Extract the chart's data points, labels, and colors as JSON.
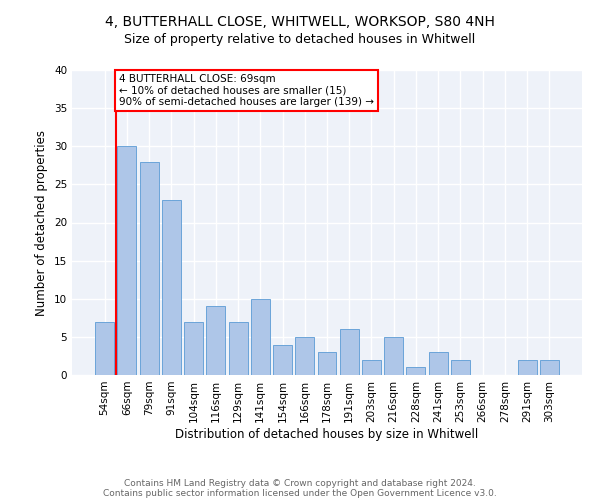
{
  "title1": "4, BUTTERHALL CLOSE, WHITWELL, WORKSOP, S80 4NH",
  "title2": "Size of property relative to detached houses in Whitwell",
  "xlabel": "Distribution of detached houses by size in Whitwell",
  "ylabel": "Number of detached properties",
  "bar_labels": [
    "54sqm",
    "66sqm",
    "79sqm",
    "91sqm",
    "104sqm",
    "116sqm",
    "129sqm",
    "141sqm",
    "154sqm",
    "166sqm",
    "178sqm",
    "191sqm",
    "203sqm",
    "216sqm",
    "228sqm",
    "241sqm",
    "253sqm",
    "266sqm",
    "278sqm",
    "291sqm",
    "303sqm"
  ],
  "bar_values": [
    7,
    30,
    28,
    23,
    7,
    9,
    7,
    10,
    4,
    5,
    3,
    6,
    2,
    5,
    1,
    3,
    2,
    0,
    0,
    2,
    2
  ],
  "bar_color": "#aec6e8",
  "bar_edgecolor": "#5b9bd5",
  "vline_x_index": 1,
  "annotation_text": "4 BUTTERHALL CLOSE: 69sqm\n← 10% of detached houses are smaller (15)\n90% of semi-detached houses are larger (139) →",
  "annotation_box_color": "white",
  "annotation_box_edgecolor": "red",
  "vline_color": "red",
  "ylim": [
    0,
    40
  ],
  "yticks": [
    0,
    5,
    10,
    15,
    20,
    25,
    30,
    35,
    40
  ],
  "footer1": "Contains HM Land Registry data © Crown copyright and database right 2024.",
  "footer2": "Contains public sector information licensed under the Open Government Licence v3.0.",
  "background_color": "#eef2f9",
  "grid_color": "white",
  "title1_fontsize": 10,
  "title2_fontsize": 9,
  "axis_label_fontsize": 8.5,
  "tick_fontsize": 7.5,
  "annotation_fontsize": 7.5,
  "footer_fontsize": 6.5
}
